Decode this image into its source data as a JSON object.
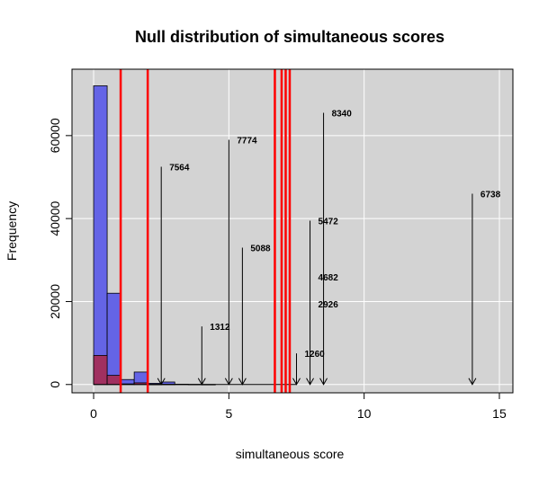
{
  "chart_data": {
    "type": "bar",
    "title": "Null distribution of simultaneous scores",
    "xlabel": "simultaneous score",
    "ylabel": "Frequency",
    "xlim": [
      -0.8,
      15.5
    ],
    "ylim": [
      -2000,
      76000
    ],
    "x_ticks": [
      0,
      5,
      10,
      15
    ],
    "y_ticks": [
      0,
      20000,
      40000,
      60000
    ],
    "x_tick_labels": [
      "0",
      "5",
      "10",
      "15"
    ],
    "y_tick_labels": [
      "0",
      "20000",
      "40000",
      "60000"
    ],
    "grid": true,
    "background_color": "#d3d3d3",
    "bin_width": 0.5,
    "series": [
      {
        "color": "#6464e6",
        "bins": [
          {
            "x0": 0.0,
            "value": 72000
          },
          {
            "x0": 0.5,
            "value": 22000
          },
          {
            "x0": 1.0,
            "value": 1200
          },
          {
            "x0": 1.5,
            "value": 3000
          },
          {
            "x0": 2.0,
            "value": 300
          },
          {
            "x0": 2.5,
            "value": 600
          },
          {
            "x0": 3.0,
            "value": 80
          },
          {
            "x0": 3.5,
            "value": 40
          },
          {
            "x0": 4.0,
            "value": 20
          }
        ]
      },
      {
        "color": "#a03060",
        "bins": [
          {
            "x0": 0.0,
            "value": 7000
          },
          {
            "x0": 0.5,
            "value": 2200
          },
          {
            "x0": 1.0,
            "value": 150
          },
          {
            "x0": 1.5,
            "value": 400
          },
          {
            "x0": 2.0,
            "value": 40
          },
          {
            "x0": 2.5,
            "value": 60
          }
        ]
      }
    ],
    "vlines": {
      "color": "#ff0000",
      "x": [
        1.0,
        2.0,
        6.7,
        6.95,
        7.1,
        7.25
      ]
    },
    "annotations": [
      {
        "label": "7564",
        "x": 2.5,
        "y_top": 52500
      },
      {
        "label": "1312",
        "x": 4.0,
        "y_top": 14000
      },
      {
        "label": "7774",
        "x": 5.0,
        "y_top": 59000
      },
      {
        "label": "5088",
        "x": 5.5,
        "y_top": 33000
      },
      {
        "label": "1260",
        "x": 7.5,
        "y_top": 7500
      },
      {
        "label": "5472",
        "x": 8.0,
        "y_top": 39500
      },
      {
        "label": "4682",
        "x": 8.0,
        "y_top": 26000,
        "no_arrow": true
      },
      {
        "label": "2926",
        "x": 8.0,
        "y_top": 19500,
        "no_arrow": true
      },
      {
        "label": "8340",
        "x": 8.5,
        "y_top": 65500
      },
      {
        "label": "6738",
        "x": 14.0,
        "y_top": 46000
      }
    ]
  }
}
